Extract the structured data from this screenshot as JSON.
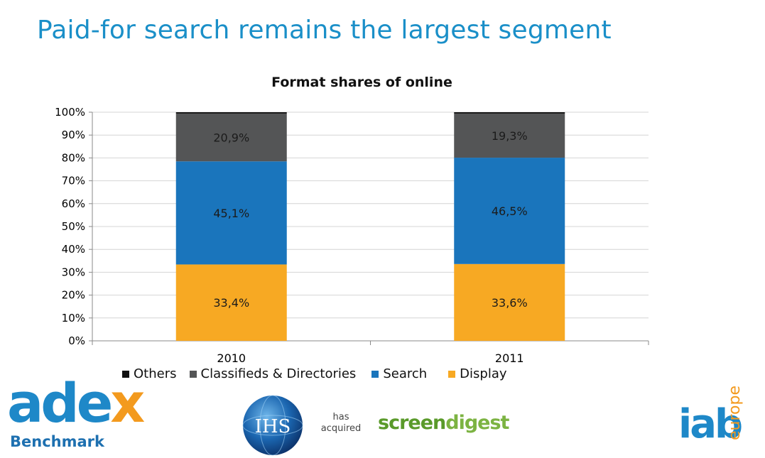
{
  "title": "Paid-for search remains the largest segment",
  "chart_data": {
    "type": "bar",
    "stacked": true,
    "title": "Format shares of online",
    "categories": [
      "2010",
      "2011"
    ],
    "y_ticks": [
      "0%",
      "10%",
      "20%",
      "30%",
      "40%",
      "50%",
      "60%",
      "70%",
      "80%",
      "90%",
      "100%"
    ],
    "ylim": [
      0,
      100
    ],
    "grid": true,
    "legend_position": "bottom",
    "series": [
      {
        "name": "Display",
        "color": "#F7A923",
        "values": [
          33.4,
          33.6
        ],
        "labels": [
          "33,4%",
          "33,6%"
        ]
      },
      {
        "name": "Search",
        "color": "#1A75BC",
        "values": [
          45.1,
          46.5
        ],
        "labels": [
          "45,1%",
          "46,5%"
        ]
      },
      {
        "name": "Classifieds & Directories",
        "color": "#545556",
        "values": [
          20.9,
          19.3
        ],
        "labels": [
          "20,9%",
          "19,3%"
        ]
      },
      {
        "name": "Others",
        "color": "#111111",
        "values": [
          0.6,
          0.6
        ],
        "labels": [
          "",
          ""
        ]
      }
    ],
    "legend_order": [
      "Others",
      "Classifieds & Directories",
      "Search",
      "Display"
    ]
  },
  "logos": {
    "adex": "adex",
    "adex_sub": "Benchmark",
    "ihs": "IHS",
    "has_acquired": "has acquired",
    "screendigest_a": "screen",
    "screendigest_b": "digest",
    "iab": "iab",
    "iab_sub": "europe"
  },
  "colors": {
    "title": "#1A8FC8",
    "brand_blue": "#1E88C8",
    "brand_orange": "#F39A1E",
    "brand_green": "#7CB342"
  }
}
